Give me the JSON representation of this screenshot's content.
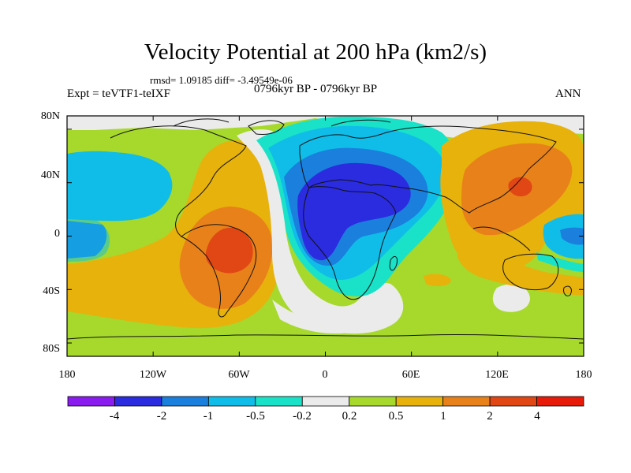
{
  "title": "Velocity Potential at 200 hPa (km2/s)",
  "stats_line": "rmsd= 1.09185 diff= -3.49549e-06",
  "left_label": "Expt = teVTF1-teIXF",
  "center_label": "0796kyr BP - 0796kyr BP",
  "right_label": "ANN",
  "y_axis": {
    "ticks": [
      "80N",
      "40N",
      "0",
      "40S",
      "80S"
    ]
  },
  "x_axis": {
    "ticks": [
      "180",
      "120W",
      "60W",
      "0",
      "60E",
      "120E",
      "180"
    ]
  },
  "colorbar": {
    "labels": [
      "-4",
      "-2",
      "-1",
      "-0.5",
      "-0.2",
      "0.2",
      "0.5",
      "1",
      "2",
      "4"
    ],
    "colors": [
      "#8a1cf0",
      "#2b2be0",
      "#1a7fdd",
      "#10bde8",
      "#19e2c8",
      "#ebebeb",
      "#a6d92c",
      "#e7b20c",
      "#e8811a",
      "#e04714",
      "#e81a0a"
    ]
  },
  "map_fill_colors": {
    "ocean_bg": "#a6d92c",
    "neutral": "#ebebeb",
    "p05_1": "#e7b20c",
    "p1_2": "#e8811a",
    "p2_4": "#e04714",
    "n02_05": "#19e2c8",
    "n05_1": "#10bde8",
    "n1_2": "#1a7fdd",
    "n2_4": "#2b2be0"
  }
}
